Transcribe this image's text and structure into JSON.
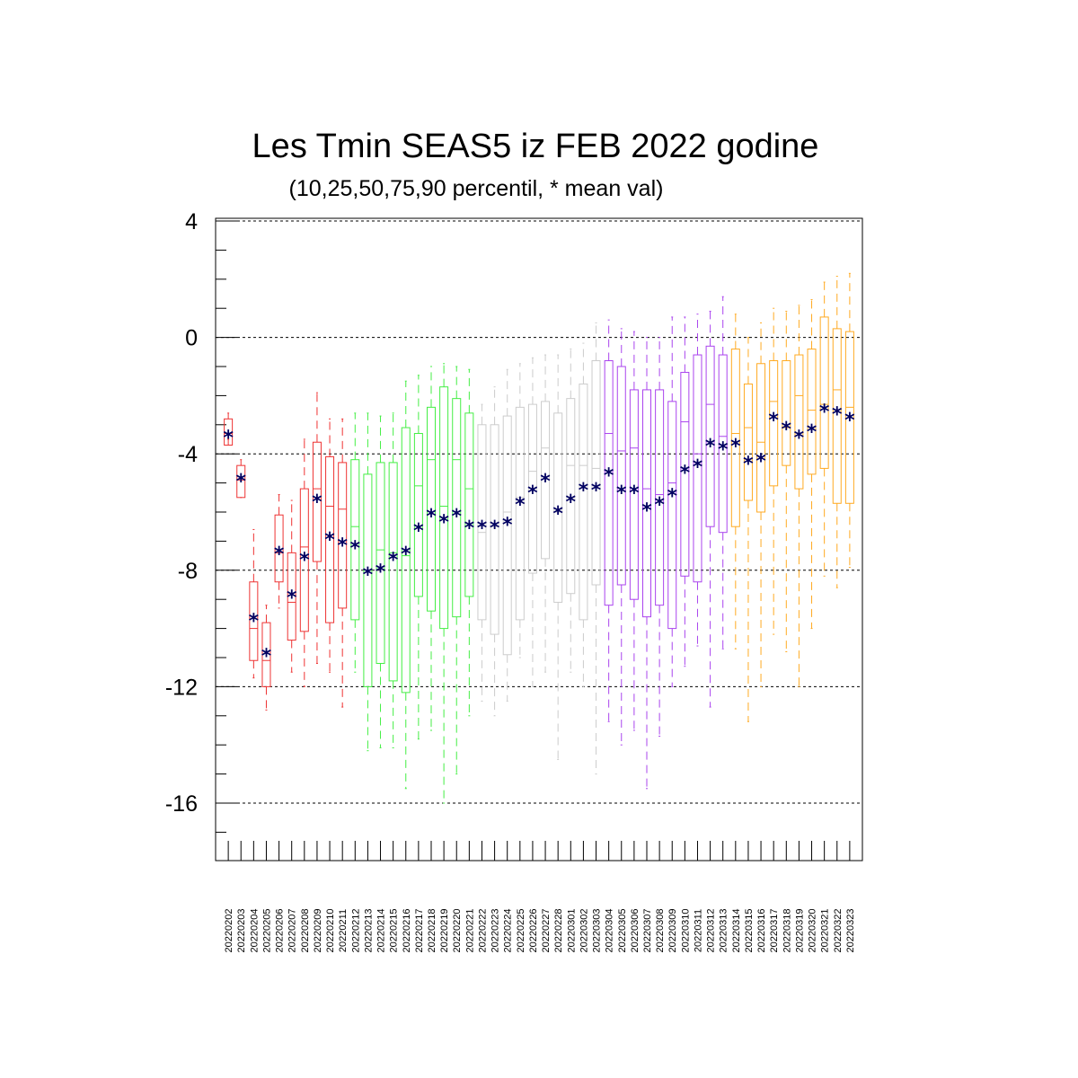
{
  "chart_data": {
    "type": "box",
    "title": "Les Tmin SEAS5 iz FEB 2022 godine",
    "subtitle": "(10,25,50,75,90 percentil, * mean val)",
    "xlabel": "",
    "ylabel": "",
    "ylim": [
      -18,
      4
    ],
    "yticks": [
      4,
      0,
      -4,
      -8,
      -12,
      -16
    ],
    "grid": "horizontal dashed",
    "categories": [
      "20220202",
      "20220203",
      "20220204",
      "20220205",
      "20220206",
      "20220207",
      "20220208",
      "20220209",
      "20220210",
      "20220211",
      "20220212",
      "20220213",
      "20220214",
      "20220215",
      "20220216",
      "20220217",
      "20220218",
      "20220219",
      "20220220",
      "20220221",
      "20220222",
      "20220223",
      "20220224",
      "20220225",
      "20220226",
      "20220227",
      "20220228",
      "20220301",
      "20220302",
      "20220303",
      "20220304",
      "20220305",
      "20220306",
      "20220307",
      "20220308",
      "20220309",
      "20220310",
      "20220311",
      "20220312",
      "20220313",
      "20220314",
      "20220315",
      "20220316",
      "20220317",
      "20220318",
      "20220319",
      "20220320",
      "20220321",
      "20220322",
      "20220323"
    ],
    "colors": {
      "feb-early": "#ee3333",
      "feb-mid": "#44ee44",
      "feb-late": "#cccccc",
      "mar-early": "#aa44ee",
      "mar-mid": "#ffaa22",
      "mean": "#000060"
    },
    "color_groups": [
      "feb-early",
      "feb-early",
      "feb-early",
      "feb-early",
      "feb-early",
      "feb-early",
      "feb-early",
      "feb-early",
      "feb-early",
      "feb-early",
      "feb-mid",
      "feb-mid",
      "feb-mid",
      "feb-mid",
      "feb-mid",
      "feb-mid",
      "feb-mid",
      "feb-mid",
      "feb-mid",
      "feb-mid",
      "feb-late",
      "feb-late",
      "feb-late",
      "feb-late",
      "feb-late",
      "feb-late",
      "feb-late",
      "feb-late",
      "feb-late",
      "feb-late",
      "mar-early",
      "mar-early",
      "mar-early",
      "mar-early",
      "mar-early",
      "mar-early",
      "mar-early",
      "mar-early",
      "mar-early",
      "mar-early",
      "mar-mid",
      "mar-mid",
      "mar-mid",
      "mar-mid",
      "mar-mid",
      "mar-mid",
      "mar-mid",
      "mar-mid",
      "mar-mid",
      "mar-mid"
    ],
    "p10": [
      -3.5,
      -5.5,
      -11.7,
      -12.8,
      -9.3,
      -11.5,
      -12.0,
      -11.2,
      -11.5,
      -12.7,
      -11.5,
      -14.2,
      -14.1,
      -14.1,
      -15.5,
      -13.8,
      -13.5,
      -16.0,
      -15.0,
      -13.0,
      -12.5,
      -13.0,
      -12.5,
      -11.0,
      -12.0,
      -11.5,
      -14.5,
      -11.5,
      -12.0,
      -15.0,
      -13.2,
      -14.0,
      -13.5,
      -15.5,
      -13.7,
      -12.0,
      -11.3,
      -10.6,
      -12.7,
      -10.7,
      -10.7,
      -13.2,
      -12.0,
      -10.2,
      -10.8,
      -12.0,
      -10.0,
      -8.2,
      -8.6,
      -7.9
    ],
    "p25": [
      -3.7,
      -5.5,
      -11.1,
      -12.0,
      -8.4,
      -10.4,
      -10.1,
      -7.7,
      -9.8,
      -9.3,
      -9.7,
      -12.0,
      -11.2,
      -11.8,
      -12.2,
      -8.9,
      -9.4,
      -10.0,
      -9.6,
      -8.9,
      -9.7,
      -10.2,
      -10.9,
      -9.7,
      -8.1,
      -7.6,
      -9.1,
      -8.8,
      -9.7,
      -8.5,
      -9.2,
      -8.5,
      -9.0,
      -9.6,
      -9.2,
      -10.0,
      -8.2,
      -8.4,
      -6.5,
      -6.7,
      -6.5,
      -5.6,
      -6.0,
      -5.1,
      -4.4,
      -5.2,
      -4.7,
      -4.5,
      -5.7,
      -5.7
    ],
    "p50": [
      -3.3,
      -4.9,
      -10.0,
      -11.1,
      -7.4,
      -9.1,
      -7.2,
      -5.2,
      -5.8,
      -5.9,
      -6.5,
      -8.0,
      -7.3,
      -7.4,
      -7.5,
      -5.1,
      -4.2,
      -5.8,
      -4.2,
      -5.2,
      -6.7,
      -6.5,
      -6.0,
      -5.5,
      -4.6,
      -3.8,
      -6.0,
      -4.4,
      -4.4,
      -4.5,
      -3.3,
      -3.9,
      -3.8,
      -5.2,
      -5.4,
      -5.0,
      -2.9,
      -4.0,
      -2.3,
      -3.4,
      -3.3,
      -3.1,
      -3.6,
      -2.2,
      -3.1,
      -2.0,
      -2.5,
      -2.3,
      -1.8,
      -2.4
    ],
    "p75": [
      -2.8,
      -4.4,
      -8.4,
      -9.8,
      -6.1,
      -7.4,
      -5.2,
      -3.6,
      -4.1,
      -4.3,
      -4.2,
      -4.7,
      -4.3,
      -4.3,
      -3.1,
      -3.3,
      -2.4,
      -1.7,
      -2.1,
      -2.6,
      -3.0,
      -3.0,
      -2.7,
      -2.4,
      -2.3,
      -2.2,
      -2.6,
      -2.1,
      -1.6,
      -0.8,
      -0.8,
      -1.0,
      -1.8,
      -1.8,
      -1.8,
      -2.2,
      -1.2,
      -0.6,
      -0.3,
      -0.6,
      -0.4,
      -1.6,
      -0.9,
      -0.8,
      -0.8,
      -0.6,
      -0.4,
      0.7,
      0.3,
      0.2
    ],
    "p90": [
      -2.6,
      -4.2,
      -6.6,
      -9.2,
      -5.4,
      -5.6,
      -3.5,
      -1.9,
      -2.8,
      -2.8,
      -2.6,
      -2.6,
      -2.7,
      -2.6,
      -1.5,
      -1.3,
      -1.0,
      -0.9,
      -1.0,
      -1.1,
      -2.3,
      -1.7,
      -1.1,
      -0.9,
      -0.7,
      -0.6,
      -0.6,
      -0.4,
      -0.2,
      0.5,
      0.6,
      0.3,
      0.2,
      0.0,
      0.0,
      0.7,
      0.7,
      0.8,
      0.9,
      1.4,
      0.8,
      0.0,
      0.5,
      1.0,
      0.9,
      1.1,
      1.3,
      1.9,
      2.1,
      2.2
    ],
    "mean": [
      -3.3,
      -4.8,
      -9.6,
      -10.8,
      -7.3,
      -8.8,
      -7.5,
      -5.5,
      -6.8,
      -7.0,
      -7.1,
      -8.0,
      -7.9,
      -7.5,
      -7.3,
      -6.5,
      -6.0,
      -6.2,
      -6.0,
      -6.4,
      -6.4,
      -6.4,
      -6.3,
      -5.6,
      -5.2,
      -4.8,
      -5.9,
      -5.5,
      -5.1,
      -5.1,
      -4.6,
      -5.2,
      -5.2,
      -5.8,
      -5.6,
      -5.3,
      -4.5,
      -4.3,
      -3.6,
      -3.7,
      -3.6,
      -4.2,
      -4.1,
      -2.7,
      -3.0,
      -3.3,
      -3.1,
      -2.4,
      -2.5,
      -2.7
    ]
  }
}
